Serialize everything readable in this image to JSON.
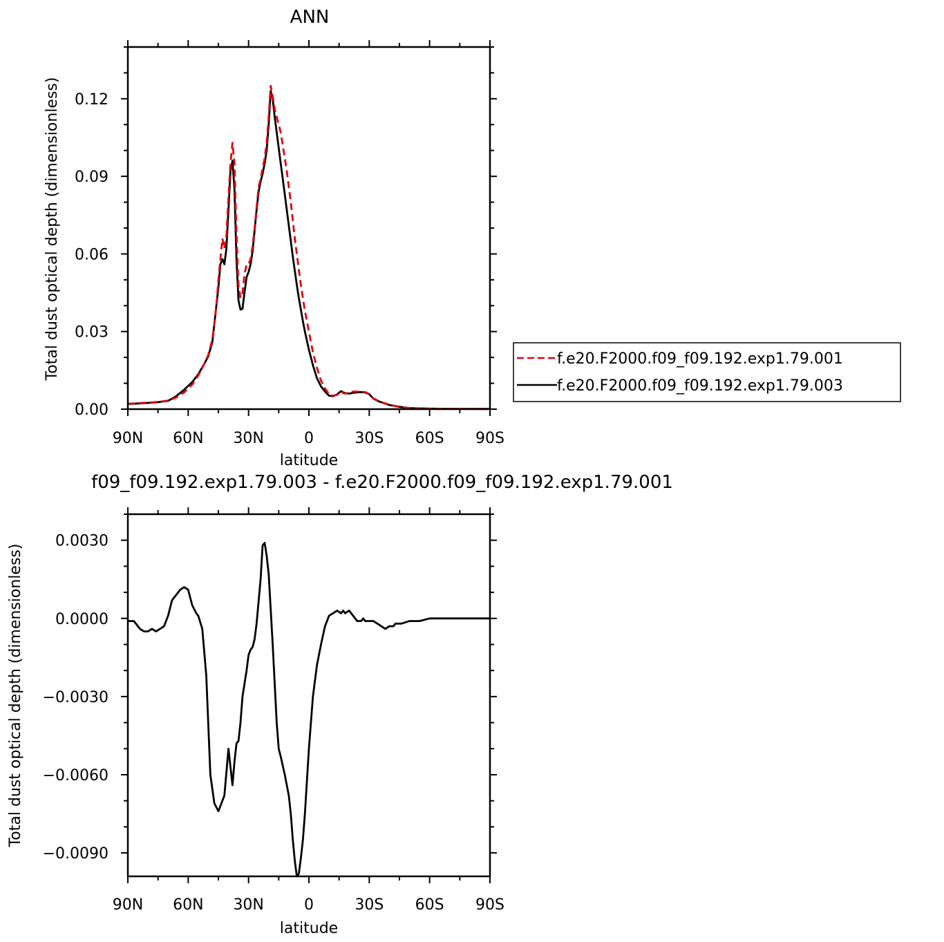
{
  "chart_data": [
    {
      "type": "line",
      "title": "ANN",
      "xlabel": "latitude",
      "ylabel": "Total dust optical depth (dimensionless)",
      "xlim": [
        -90,
        90
      ],
      "ylim": [
        0,
        0.14
      ],
      "x_ticks": [
        {
          "value": -90,
          "label": "90N"
        },
        {
          "value": -60,
          "label": "60N"
        },
        {
          "value": -30,
          "label": "30N"
        },
        {
          "value": 0,
          "label": "0"
        },
        {
          "value": 30,
          "label": "30S"
        },
        {
          "value": 60,
          "label": "60S"
        },
        {
          "value": 90,
          "label": "90S"
        }
      ],
      "y_ticks": [
        {
          "value": 0,
          "label": "0.00"
        },
        {
          "value": 0.03,
          "label": "0.03"
        },
        {
          "value": 0.06,
          "label": "0.06"
        },
        {
          "value": 0.09,
          "label": "0.09"
        },
        {
          "value": 0.12,
          "label": "0.12"
        }
      ],
      "legend_placement": "right",
      "series": [
        {
          "name": "f.e20.F2000.f09_f09.192.exp1.79.001",
          "color": "#e3000f",
          "dash": "dashed",
          "x": [
            -90,
            -85,
            -80,
            -75,
            -70,
            -66,
            -62,
            -58,
            -55,
            -52,
            -50,
            -48,
            -47,
            -46,
            -45,
            -44,
            -43,
            -42,
            -41,
            -40,
            -39,
            -38,
            -37,
            -36,
            -35,
            -34,
            -33,
            -32,
            -31,
            -30,
            -29,
            -28,
            -27,
            -26,
            -25,
            -24,
            -23,
            -22,
            -21,
            -20,
            -19,
            -18,
            -17,
            -16,
            -15,
            -14,
            -13,
            -12,
            -11,
            -10,
            -9,
            -8,
            -7,
            -6,
            -5,
            -4,
            -3,
            -2,
            -1,
            0,
            2,
            4,
            6,
            8,
            10,
            12,
            14,
            16,
            17,
            18,
            20,
            22,
            24,
            26,
            28,
            30,
            32,
            35,
            40,
            45,
            50,
            60,
            70,
            80,
            90
          ],
          "values": [
            0.0021,
            0.0023,
            0.0025,
            0.0028,
            0.0033,
            0.0045,
            0.0065,
            0.0095,
            0.013,
            0.0175,
            0.021,
            0.027,
            0.033,
            0.04,
            0.05,
            0.058,
            0.066,
            0.062,
            0.067,
            0.082,
            0.095,
            0.103,
            0.095,
            0.068,
            0.048,
            0.043,
            0.045,
            0.052,
            0.056,
            0.056,
            0.058,
            0.063,
            0.07,
            0.078,
            0.086,
            0.089,
            0.093,
            0.097,
            0.103,
            0.113,
            0.125,
            0.121,
            0.116,
            0.113,
            0.11,
            0.107,
            0.102,
            0.097,
            0.092,
            0.086,
            0.08,
            0.073,
            0.066,
            0.06,
            0.054,
            0.048,
            0.043,
            0.038,
            0.034,
            0.03,
            0.022,
            0.016,
            0.011,
            0.008,
            0.0058,
            0.0052,
            0.0055,
            0.0068,
            0.0062,
            0.006,
            0.0062,
            0.0068,
            0.0068,
            0.0067,
            0.0066,
            0.0058,
            0.0042,
            0.003,
            0.0017,
            0.0009,
            0.0004,
            0.0002,
            0.0001,
            0.0001,
            0.0001
          ]
        },
        {
          "name": "f.e20.F2000.f09_f09.192.exp1.79.003",
          "color": "#000000",
          "dash": "solid",
          "x": [
            -90,
            -85,
            -80,
            -75,
            -70,
            -66,
            -62,
            -58,
            -55,
            -52,
            -50,
            -48,
            -47,
            -46,
            -45,
            -44,
            -43,
            -42,
            -41,
            -40,
            -39,
            -38,
            -37,
            -36,
            -35,
            -34,
            -33,
            -32,
            -31,
            -30,
            -29,
            -28,
            -27,
            -26,
            -25,
            -24,
            -23,
            -22,
            -21,
            -20,
            -19,
            -18,
            -17,
            -16,
            -15,
            -14,
            -13,
            -12,
            -11,
            -10,
            -9,
            -8,
            -7,
            -6,
            -5,
            -4,
            -3,
            -2,
            -1,
            0,
            2,
            4,
            6,
            8,
            10,
            12,
            14,
            16,
            17,
            18,
            20,
            22,
            24,
            26,
            28,
            30,
            32,
            35,
            40,
            45,
            50,
            60,
            70,
            80,
            90
          ],
          "values": [
            0.002,
            0.0022,
            0.0024,
            0.0027,
            0.0032,
            0.005,
            0.0075,
            0.0105,
            0.0135,
            0.0175,
            0.0205,
            0.026,
            0.033,
            0.04,
            0.047,
            0.056,
            0.058,
            0.056,
            0.062,
            0.077,
            0.092,
            0.096,
            0.085,
            0.058,
            0.042,
            0.0385,
            0.0388,
            0.045,
            0.051,
            0.053,
            0.056,
            0.061,
            0.069,
            0.077,
            0.084,
            0.088,
            0.091,
            0.095,
            0.1,
            0.11,
            0.123,
            0.12,
            0.113,
            0.107,
            0.101,
            0.095,
            0.089,
            0.083,
            0.077,
            0.071,
            0.065,
            0.059,
            0.0535,
            0.048,
            0.043,
            0.0385,
            0.034,
            0.03,
            0.0265,
            0.023,
            0.017,
            0.012,
            0.0088,
            0.0068,
            0.0052,
            0.005,
            0.0057,
            0.007,
            0.0065,
            0.0062,
            0.006,
            0.0063,
            0.0065,
            0.0066,
            0.0064,
            0.0058,
            0.0041,
            0.0029,
            0.0016,
            0.0009,
            0.0004,
            0.0002,
            0.0001,
            0.0001,
            0.0001
          ]
        }
      ]
    },
    {
      "type": "line",
      "title": "f09_f09.192.exp1.79.003 - f.e20.F2000.f09_f09.192.exp1.79.001",
      "xlabel": "latitude",
      "ylabel": "Total dust optical depth (dimensionless)",
      "xlim": [
        -90,
        90
      ],
      "ylim": [
        -0.0099,
        0.004
      ],
      "x_ticks": [
        {
          "value": -90,
          "label": "90N"
        },
        {
          "value": -60,
          "label": "60N"
        },
        {
          "value": -30,
          "label": "30N"
        },
        {
          "value": 0,
          "label": "0"
        },
        {
          "value": 30,
          "label": "30S"
        },
        {
          "value": 60,
          "label": "60S"
        },
        {
          "value": 90,
          "label": "90S"
        }
      ],
      "y_ticks": [
        {
          "value": 0.003,
          "label": "0.0030"
        },
        {
          "value": 0.0,
          "label": "0.0000"
        },
        {
          "value": -0.003,
          "label": "−0.0030"
        },
        {
          "value": -0.006,
          "label": "−0.0060"
        },
        {
          "value": -0.009,
          "label": "−0.0090"
        }
      ],
      "series": [
        {
          "name": "",
          "color": "#000000",
          "dash": "solid",
          "x": [
            -90,
            -87,
            -86,
            -84,
            -82,
            -80,
            -78,
            -76,
            -74,
            -72,
            -70,
            -68,
            -66,
            -64,
            -62,
            -60,
            -59,
            -58,
            -56,
            -55,
            -53,
            -51,
            -49,
            -47,
            -45,
            -44,
            -42,
            -40,
            -38,
            -37,
            -36,
            -35,
            -34,
            -33,
            -31,
            -30,
            -29,
            -28,
            -27,
            -26,
            -24,
            -23,
            -22,
            -21,
            -20,
            -18,
            -16,
            -15,
            -14,
            -12,
            -10,
            -9,
            -8,
            -7,
            -6,
            -5,
            -4,
            -3,
            -2,
            0,
            2,
            4,
            6,
            8,
            10,
            12,
            14,
            16,
            17,
            18,
            20,
            22,
            24,
            26,
            27,
            28,
            29,
            30,
            32,
            34,
            36,
            38,
            40,
            42,
            43,
            44,
            46,
            50,
            55,
            60,
            70,
            80,
            90
          ],
          "values": [
            -0.0001,
            -0.0001,
            -0.0002,
            -0.0004,
            -0.0005,
            -0.0005,
            -0.0004,
            -0.0005,
            -0.0004,
            -0.0003,
            0.0001,
            0.0007,
            0.0009,
            0.0011,
            0.0012,
            0.0011,
            0.0008,
            0.0005,
            0.0002,
            0.0001,
            -0.0004,
            -0.0022,
            -0.006,
            -0.0071,
            -0.0074,
            -0.0072,
            -0.0068,
            -0.005,
            -0.0064,
            -0.0055,
            -0.0048,
            -0.0047,
            -0.004,
            -0.003,
            -0.002,
            -0.0014,
            -0.0012,
            -0.0011,
            -0.0008,
            -0.0002,
            0.0015,
            0.0028,
            0.0029,
            0.0024,
            0.0017,
            -0.001,
            -0.004,
            -0.005,
            -0.0053,
            -0.006,
            -0.0068,
            -0.0075,
            -0.0085,
            -0.0093,
            -0.0099,
            -0.0098,
            -0.0092,
            -0.0085,
            -0.0075,
            -0.005,
            -0.003,
            -0.0018,
            -0.001,
            -0.0003,
            0.0001,
            0.0002,
            0.0003,
            0.0002,
            0.0003,
            0.0002,
            0.0003,
            0.0001,
            -0.0001,
            -0.0001,
            0.0,
            -0.0001,
            -0.0001,
            -0.0001,
            -0.0001,
            -0.0002,
            -0.0003,
            -0.0004,
            -0.0003,
            -0.0003,
            -0.0002,
            -0.0002,
            -0.0002,
            -0.0001,
            -0.0001,
            0.0,
            0.0,
            0.0,
            0.0
          ]
        }
      ]
    }
  ]
}
